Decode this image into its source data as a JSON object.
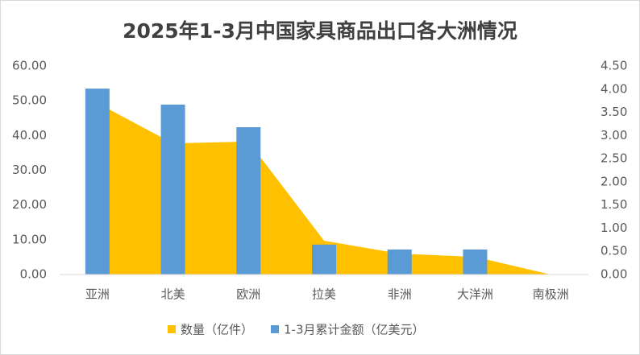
{
  "chart_data": {
    "type": "bar-area",
    "title": "2025年1-3月中国家具商品出口各大洲情况",
    "categories": [
      "亚洲",
      "北美",
      "欧洲",
      "拉美",
      "非洲",
      "大洋洲",
      "南极洲"
    ],
    "series": [
      {
        "name": "数量（亿件）",
        "type": "area",
        "axis": "y2",
        "color": "#ffc000",
        "values": [
          3.7,
          2.83,
          2.87,
          0.73,
          0.45,
          0.38,
          0
        ]
      },
      {
        "name": "1-3月累计金额（亿美元）",
        "type": "bar",
        "color": "#5b9bd5",
        "values": [
          53.5,
          48.9,
          42.4,
          8.6,
          7.2,
          7.2,
          0
        ]
      }
    ],
    "ylim": [
      0,
      60
    ],
    "yticks": [
      {
        "value": 0,
        "label": "0.00"
      },
      {
        "value": 10,
        "label": "10.00"
      },
      {
        "value": 20,
        "label": "20.00"
      },
      {
        "value": 30,
        "label": "30.00"
      },
      {
        "value": 40,
        "label": "40.00"
      },
      {
        "value": 50,
        "label": "50.00"
      },
      {
        "value": 60,
        "label": "60.00"
      }
    ],
    "y2lim": [
      0,
      4.5
    ],
    "y2ticks": [
      {
        "value": 0,
        "label": "0.00"
      },
      {
        "value": 0.5,
        "label": "0.50"
      },
      {
        "value": 1,
        "label": "1.00"
      },
      {
        "value": 1.5,
        "label": "1.50"
      },
      {
        "value": 2,
        "label": "2.00"
      },
      {
        "value": 2.5,
        "label": "2.50"
      },
      {
        "value": 3,
        "label": "3.00"
      },
      {
        "value": 3.5,
        "label": "3.50"
      },
      {
        "value": 4,
        "label": "4.00"
      },
      {
        "value": 4.5,
        "label": "4.50"
      }
    ],
    "legend": "bottom"
  }
}
